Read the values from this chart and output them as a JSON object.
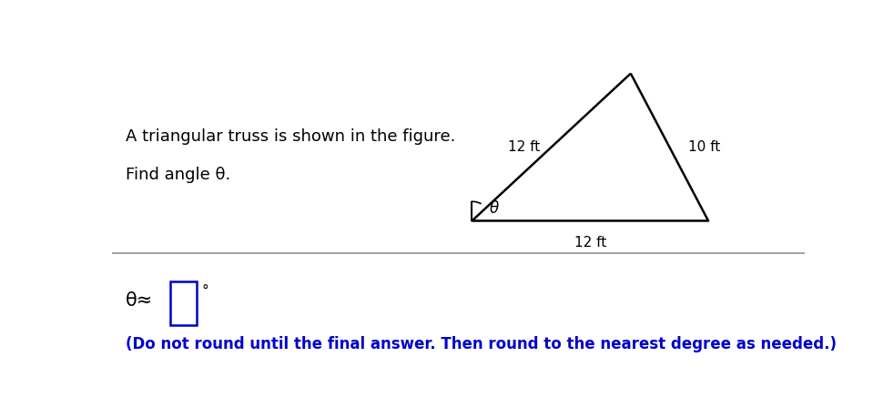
{
  "title_line1": "A triangular truss is shown in the figure.",
  "title_line2": "Find angle θ.",
  "left_side_label": "12 ft",
  "right_side_label": "10 ft",
  "bottom_label": "12 ft",
  "angle_label": "θ",
  "answer_prefix": "θ≈",
  "answer_unit": "°",
  "footer_text": "(Do not round until the final answer. Then round to the nearest degree as needed.)",
  "divider_color": "#9B8A9B",
  "footer_color": "#0000CC",
  "text_fontsize": 13,
  "label_fontsize": 11
}
